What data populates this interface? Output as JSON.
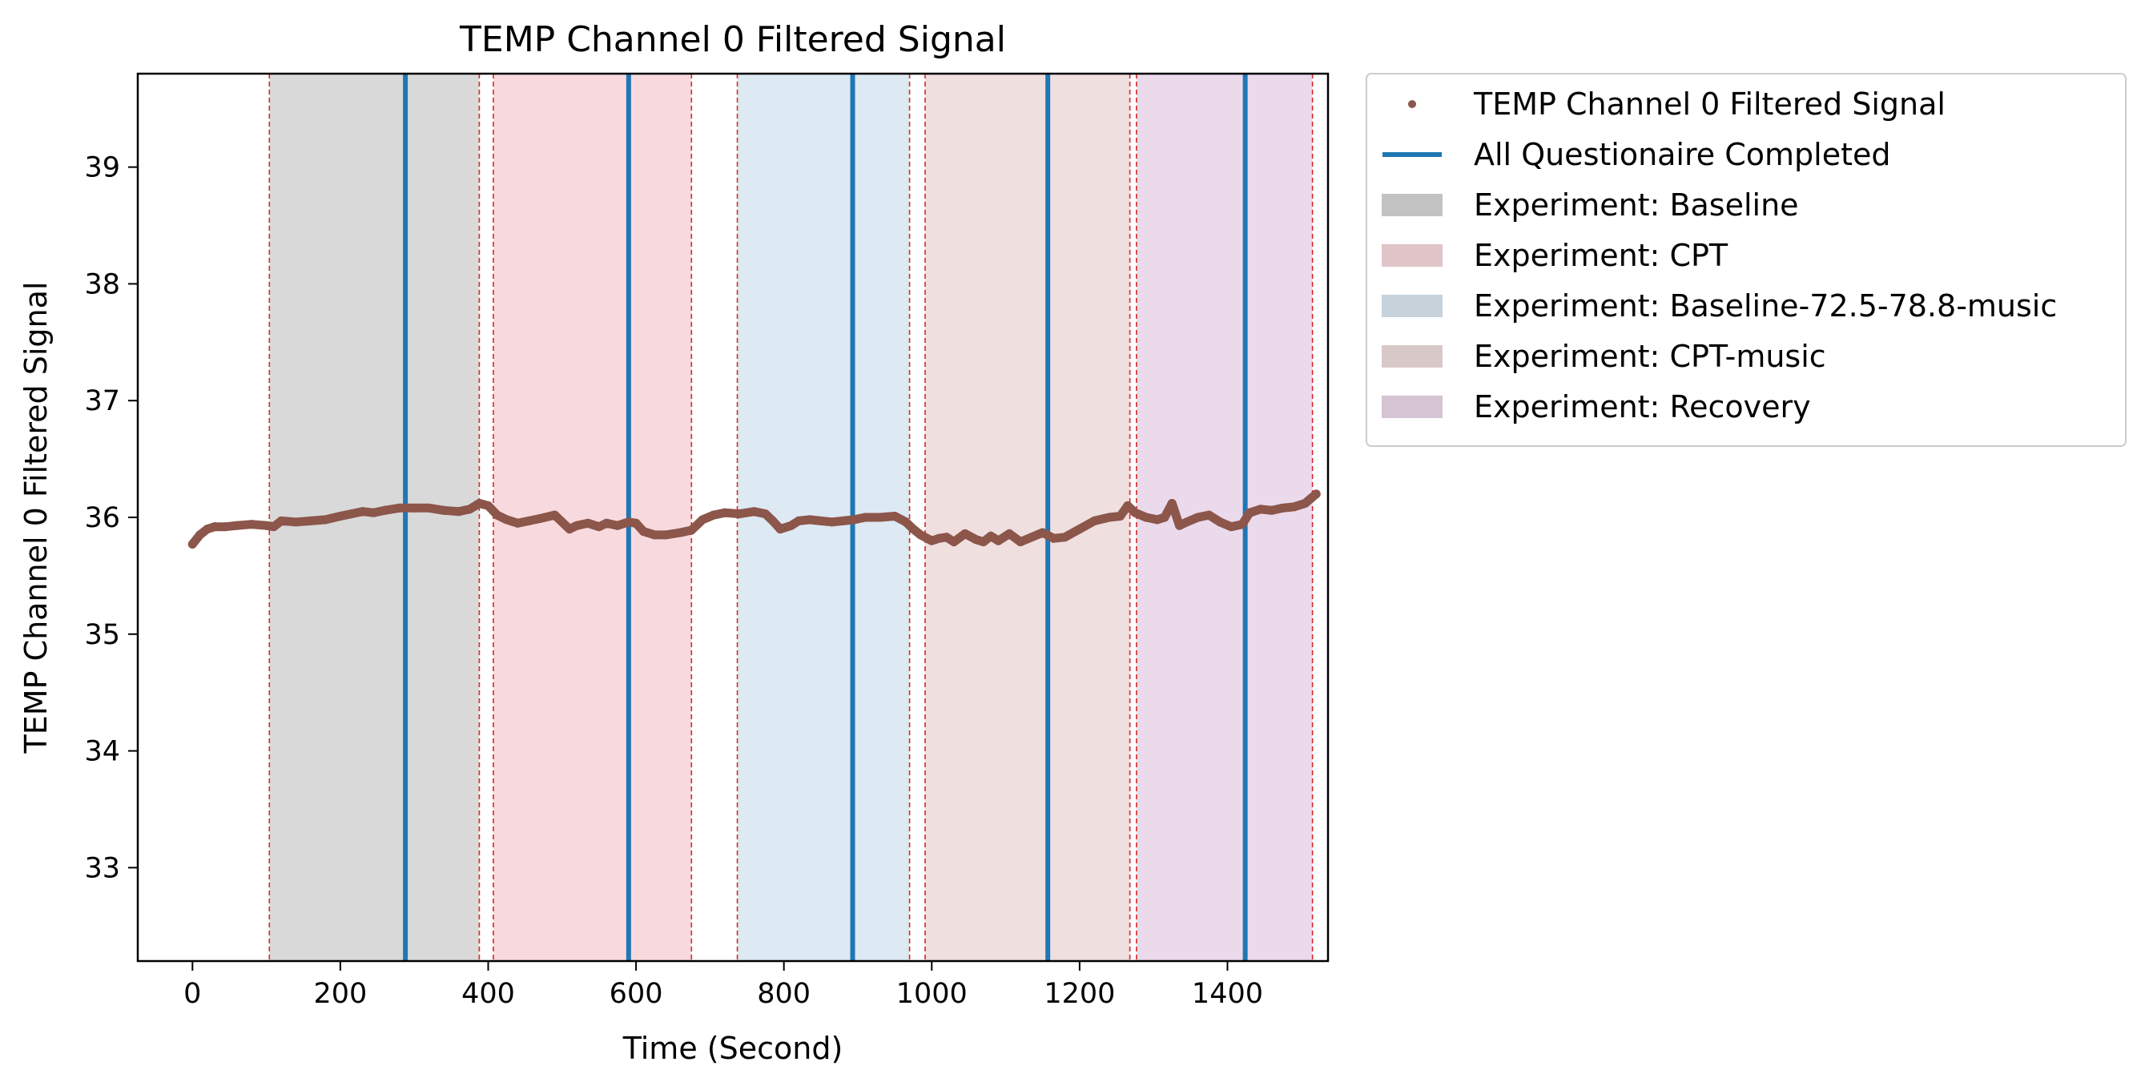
{
  "chart_data": {
    "type": "line",
    "title": "TEMP Channel 0 Filtered Signal",
    "xlabel": "Time (Second)",
    "ylabel": "TEMP Channel 0 Filtered Signal",
    "xlim": [
      -74,
      1536
    ],
    "ylim": [
      32.2,
      39.8
    ],
    "xticks": [
      0,
      200,
      400,
      600,
      800,
      1000,
      1200,
      1400
    ],
    "yticks": [
      33,
      34,
      35,
      36,
      37,
      38,
      39
    ],
    "grid": false,
    "legend_position": "outside-top-right",
    "colors": {
      "signal": "#8c564b",
      "questionnaire": "#1f77b4",
      "boundary": "#d62728"
    },
    "series": [
      {
        "name": "TEMP Channel 0 Filtered Signal",
        "marker": "dot",
        "x": [
          0,
          10,
          20,
          30,
          45,
          60,
          80,
          100,
          110,
          120,
          140,
          160,
          180,
          200,
          215,
          230,
          245,
          260,
          280,
          300,
          320,
          340,
          360,
          375,
          388,
          400,
          412,
          425,
          440,
          455,
          470,
          490,
          510,
          520,
          535,
          550,
          560,
          575,
          590,
          600,
          610,
          625,
          640,
          660,
          675,
          690,
          705,
          720,
          740,
          760,
          775,
          785,
          795,
          810,
          820,
          835,
          850,
          865,
          880,
          895,
          910,
          930,
          950,
          965,
          975,
          985,
          1000,
          1010,
          1020,
          1030,
          1045,
          1060,
          1070,
          1080,
          1090,
          1105,
          1120,
          1135,
          1150,
          1165,
          1180,
          1200,
          1220,
          1240,
          1255,
          1265,
          1275,
          1290,
          1305,
          1315,
          1325,
          1335,
          1345,
          1360,
          1375,
          1390,
          1405,
          1420,
          1430,
          1445,
          1460,
          1475,
          1490,
          1505,
          1520
        ],
        "values": [
          35.77,
          35.85,
          35.9,
          35.92,
          35.92,
          35.93,
          35.94,
          35.93,
          35.92,
          35.97,
          35.96,
          35.97,
          35.98,
          36.01,
          36.03,
          36.05,
          36.04,
          36.06,
          36.08,
          36.08,
          36.08,
          36.06,
          36.05,
          36.07,
          36.12,
          36.1,
          36.02,
          35.98,
          35.95,
          35.97,
          35.99,
          36.02,
          35.9,
          35.93,
          35.95,
          35.92,
          35.95,
          35.93,
          35.96,
          35.95,
          35.88,
          35.85,
          35.85,
          35.87,
          35.89,
          35.98,
          36.02,
          36.04,
          36.03,
          36.05,
          36.03,
          35.97,
          35.9,
          35.93,
          35.97,
          35.98,
          35.97,
          35.96,
          35.97,
          35.98,
          36.0,
          36.0,
          36.01,
          35.96,
          35.9,
          35.85,
          35.8,
          35.82,
          35.83,
          35.79,
          35.86,
          35.81,
          35.79,
          35.84,
          35.8,
          35.86,
          35.79,
          35.83,
          35.87,
          35.82,
          35.83,
          35.9,
          35.97,
          36.0,
          36.01,
          36.1,
          36.04,
          36.0,
          35.98,
          36.0,
          36.12,
          35.93,
          35.96,
          36.0,
          36.02,
          35.96,
          35.92,
          35.94,
          36.04,
          36.07,
          36.06,
          36.08,
          36.09,
          36.12,
          36.2
        ]
      }
    ],
    "questionnaire_lines": {
      "name": "All Questionaire Completed",
      "x": [
        288,
        590,
        893,
        1157,
        1424
      ]
    },
    "shaded_regions": [
      {
        "name": "Experiment: Baseline",
        "color": "#d9d9d9",
        "start": 104,
        "end": 388
      },
      {
        "name": "Experiment: CPT",
        "color": "#f8dade",
        "start": 407,
        "end": 675
      },
      {
        "name": "Experiment: Baseline-72.5-78.8-music",
        "color": "#dde9f3",
        "start": 737,
        "end": 970
      },
      {
        "name": "Experiment: CPT-music",
        "color": "#f0dfdf",
        "start": 991,
        "end": 1268
      },
      {
        "name": "Experiment: Recovery",
        "color": "#ebdaec",
        "start": 1277,
        "end": 1515
      }
    ],
    "boundary_lines_x": [
      104,
      388,
      407,
      675,
      737,
      970,
      991,
      1268,
      1277,
      1515
    ],
    "legend": [
      {
        "label": "TEMP Channel 0 Filtered Signal",
        "kind": "marker",
        "color": "#8c564b"
      },
      {
        "label": "All Questionaire Completed",
        "kind": "line",
        "color": "#1f77b4"
      },
      {
        "label": "Experiment: Baseline",
        "kind": "patch",
        "color": "#d9d9d9"
      },
      {
        "label": "Experiment: CPT",
        "kind": "patch",
        "color": "#f8dade"
      },
      {
        "label": "Experiment: Baseline-72.5-78.8-music",
        "kind": "patch",
        "color": "#dde9f3"
      },
      {
        "label": "Experiment: CPT-music",
        "kind": "patch",
        "color": "#f0dfdf"
      },
      {
        "label": "Experiment: Recovery",
        "kind": "patch",
        "color": "#ebdaec"
      }
    ]
  }
}
